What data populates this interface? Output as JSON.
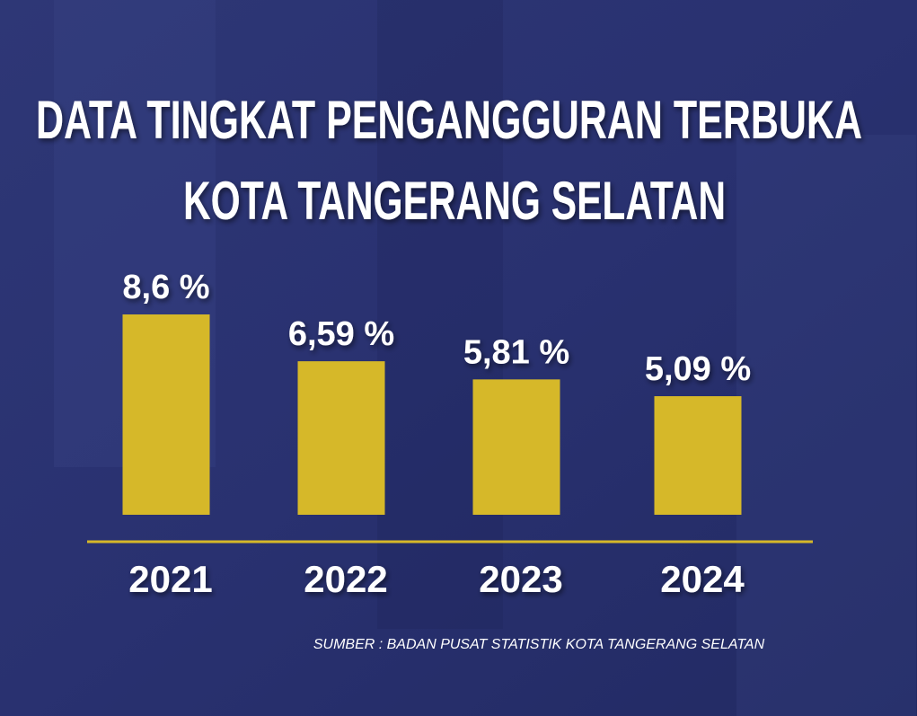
{
  "chart_data": {
    "type": "bar",
    "title": [
      "DATA TINGKAT PENGANGGURAN TERBUKA",
      "KOTA TANGERANG SELATAN"
    ],
    "categories": [
      "2021",
      "2022",
      "2023",
      "2024"
    ],
    "values": [
      8.6,
      6.59,
      5.81,
      5.09
    ],
    "value_labels": [
      "8,6 %",
      "6,59 %",
      "5,81 %",
      "5,09 %"
    ],
    "color": "#d6b829",
    "source": "SUMBER : BADAN PUSAT STATISTIK KOTA TANGERANG SELATAN"
  }
}
